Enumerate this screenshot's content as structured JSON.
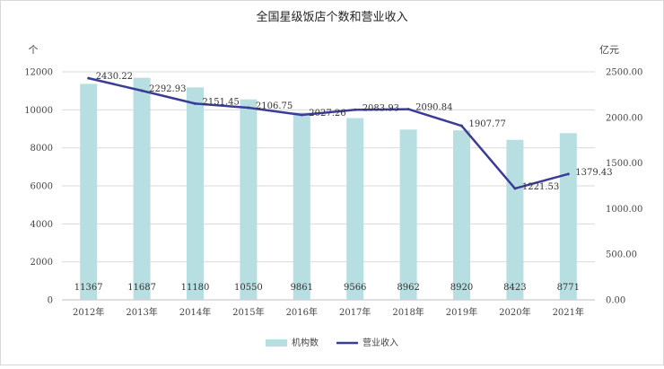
{
  "chart_data": {
    "type": "bar",
    "title": "全国星级饭店个数和营业收入",
    "categories": [
      "2012年",
      "2013年",
      "2014年",
      "2015年",
      "2016年",
      "2017年",
      "2018年",
      "2019年",
      "2020年",
      "2021年"
    ],
    "series": [
      {
        "name": "机构数",
        "type": "bar",
        "axis": "left",
        "values": [
          11367,
          11687,
          11180,
          10550,
          9861,
          9566,
          8962,
          8920,
          8423,
          8771
        ]
      },
      {
        "name": "营业收入",
        "type": "line",
        "axis": "right",
        "values": [
          2430.22,
          2292.93,
          2151.45,
          2106.75,
          2027.26,
          2083.93,
          2090.84,
          1907.77,
          1221.53,
          1379.43
        ]
      }
    ],
    "y_left": {
      "unit": "个",
      "range": [
        0,
        12000
      ],
      "ticks": [
        "0",
        "2000",
        "4000",
        "6000",
        "8000",
        "10000",
        "12000"
      ]
    },
    "y_right": {
      "unit": "亿元",
      "range": [
        0,
        2500
      ],
      "ticks": [
        "0.00",
        "500.00",
        "1000.00",
        "1500.00",
        "2000.00",
        "2500.00"
      ]
    },
    "grid": true,
    "legend": "bottom",
    "colors": {
      "bar": "#b7dfe1",
      "line": "#3a3c96",
      "grid": "#d9d9d9"
    }
  }
}
